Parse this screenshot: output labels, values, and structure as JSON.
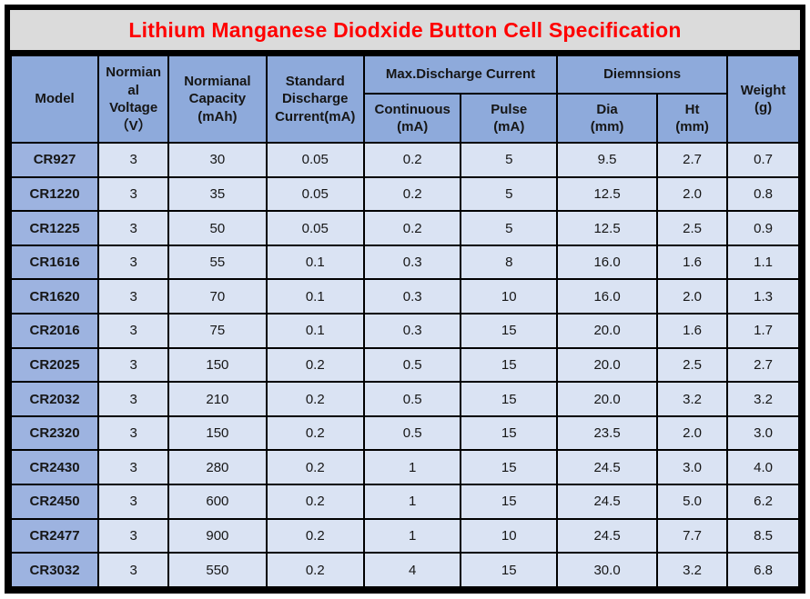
{
  "title": "Lithium Manganese Diodxide Button Cell Specification",
  "colors": {
    "title_bg": "#dbdbdb",
    "title_text": "#ff0000",
    "header_bg": "#8eaadb",
    "model_col_bg": "#9db3e0",
    "data_cell_bg": "#dae3f3",
    "border": "#000000"
  },
  "table": {
    "header": {
      "model": "Model",
      "voltage": "Normian\nal\nVoltage\n（V）",
      "capacity": "Normianal\nCapacity\n(mAh)",
      "std_discharge": "Standard\nDischarge\nCurrent(mA)",
      "max_discharge_group": "Max.Discharge Current",
      "continuous": "Continuous\n(mA)",
      "pulse": "Pulse\n(mA)",
      "dimensions_group": "Diemnsions",
      "dia": "Dia\n(mm)",
      "ht": "Ht\n(mm)",
      "weight": "Weight\n(g)"
    },
    "rows": [
      [
        "CR927",
        "3",
        "30",
        "0.05",
        "0.2",
        "5",
        "9.5",
        "2.7",
        "0.7"
      ],
      [
        "CR1220",
        "3",
        "35",
        "0.05",
        "0.2",
        "5",
        "12.5",
        "2.0",
        "0.8"
      ],
      [
        "CR1225",
        "3",
        "50",
        "0.05",
        "0.2",
        "5",
        "12.5",
        "2.5",
        "0.9"
      ],
      [
        "CR1616",
        "3",
        "55",
        "0.1",
        "0.3",
        "8",
        "16.0",
        "1.6",
        "1.1"
      ],
      [
        "CR1620",
        "3",
        "70",
        "0.1",
        "0.3",
        "10",
        "16.0",
        "2.0",
        "1.3"
      ],
      [
        "CR2016",
        "3",
        "75",
        "0.1",
        "0.3",
        "15",
        "20.0",
        "1.6",
        "1.7"
      ],
      [
        "CR2025",
        "3",
        "150",
        "0.2",
        "0.5",
        "15",
        "20.0",
        "2.5",
        "2.7"
      ],
      [
        "CR2032",
        "3",
        "210",
        "0.2",
        "0.5",
        "15",
        "20.0",
        "3.2",
        "3.2"
      ],
      [
        "CR2320",
        "3",
        "150",
        "0.2",
        "0.5",
        "15",
        "23.5",
        "2.0",
        "3.0"
      ],
      [
        "CR2430",
        "3",
        "280",
        "0.2",
        "1",
        "15",
        "24.5",
        "3.0",
        "4.0"
      ],
      [
        "CR2450",
        "3",
        "600",
        "0.2",
        "1",
        "15",
        "24.5",
        "5.0",
        "6.2"
      ],
      [
        "CR2477",
        "3",
        "900",
        "0.2",
        "1",
        "10",
        "24.5",
        "7.7",
        "8.5"
      ],
      [
        "CR3032",
        "3",
        "550",
        "0.2",
        "4",
        "15",
        "30.0",
        "3.2",
        "6.8"
      ]
    ]
  }
}
